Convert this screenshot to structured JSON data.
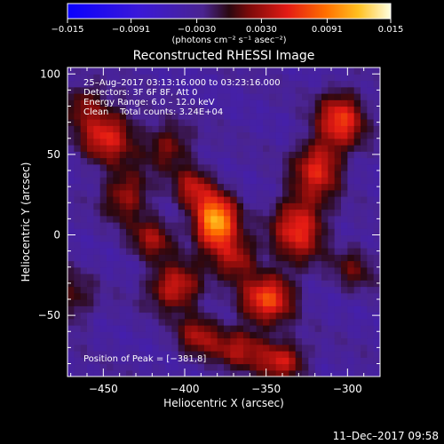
{
  "chart_data": {
    "type": "heatmap",
    "title": "Reconstructed RHESSI Image",
    "xlabel": "Heliocentric X (arcsec)",
    "ylabel": "Heliocentric Y (arcsec)",
    "xlim": [
      -472,
      -280
    ],
    "ylim": [
      -88,
      104
    ],
    "x_ticks": [
      -450,
      -400,
      -350,
      -300
    ],
    "x_tick_labels": [
      "−450",
      "−400",
      "−350",
      "−300"
    ],
    "y_ticks": [
      100,
      50,
      0,
      -50
    ],
    "y_tick_labels": [
      "100",
      "50",
      "0",
      "−50"
    ],
    "colorbar": {
      "range": [
        -0.015,
        0.015
      ],
      "ticks": [
        -0.015,
        -0.0091,
        -0.003,
        0.003,
        0.0091,
        0.015
      ],
      "tick_labels": [
        "−0.015",
        "−0.0091",
        "−0.0030",
        "0.0030",
        "0.0091",
        "0.015"
      ],
      "unit_label": "(photons cm⁻² s⁻¹ asec⁻²)"
    },
    "annotations": [
      "25–Aug–2017 03:13:16.000 to 03:23:16.000",
      "Detectors: 3F 6F 8F, Att 0",
      "Energy Range: 6.0 – 12.0 keV",
      "Clean    Total counts: 3.24E+04"
    ],
    "peak_label": "Position of Peak = [−381,8]",
    "peak": [
      -381,
      8
    ],
    "sources": [
      {
        "x": -381,
        "y": 8,
        "sx": 9,
        "sy": 12,
        "amp": 0.015
      },
      {
        "x": -395,
        "y": 30,
        "sx": 8,
        "sy": 9,
        "amp": 0.0065
      },
      {
        "x": -368,
        "y": -14,
        "sx": 9,
        "sy": 9,
        "amp": 0.0065
      },
      {
        "x": -410,
        "y": 55,
        "sx": 10,
        "sy": 10,
        "amp": 0.0055
      },
      {
        "x": -355,
        "y": -40,
        "sx": 10,
        "sy": 10,
        "amp": 0.005
      },
      {
        "x": -448,
        "y": 62,
        "sx": 12,
        "sy": 12,
        "amp": 0.0085
      },
      {
        "x": -436,
        "y": 25,
        "sx": 10,
        "sy": 11,
        "amp": 0.0065
      },
      {
        "x": -462,
        "y": 82,
        "sx": 8,
        "sy": 8,
        "amp": 0.005
      },
      {
        "x": -420,
        "y": -2,
        "sx": 9,
        "sy": 9,
        "amp": 0.006
      },
      {
        "x": -406,
        "y": -32,
        "sx": 11,
        "sy": 10,
        "amp": 0.0085
      },
      {
        "x": -392,
        "y": -62,
        "sx": 9,
        "sy": 9,
        "amp": 0.006
      },
      {
        "x": -366,
        "y": -70,
        "sx": 12,
        "sy": 9,
        "amp": 0.0065
      },
      {
        "x": -340,
        "y": -78,
        "sx": 10,
        "sy": 8,
        "amp": 0.008
      },
      {
        "x": -304,
        "y": 72,
        "sx": 10,
        "sy": 12,
        "amp": 0.0095
      },
      {
        "x": -318,
        "y": 42,
        "sx": 10,
        "sy": 12,
        "amp": 0.0085
      },
      {
        "x": -330,
        "y": 5,
        "sx": 11,
        "sy": 14,
        "amp": 0.0095
      },
      {
        "x": -345,
        "y": -38,
        "sx": 10,
        "sy": 11,
        "amp": 0.0065
      },
      {
        "x": -296,
        "y": -20,
        "sx": 9,
        "sy": 10,
        "amp": 0.004
      },
      {
        "x": -470,
        "y": -40,
        "sx": 10,
        "sy": 12,
        "amp": 0.004
      }
    ],
    "stripes": {
      "angle_deg": 62,
      "period": 40,
      "amp": 0.0042,
      "phase": 0.3
    },
    "timestamp": "11–Dec–2017 09:58"
  }
}
